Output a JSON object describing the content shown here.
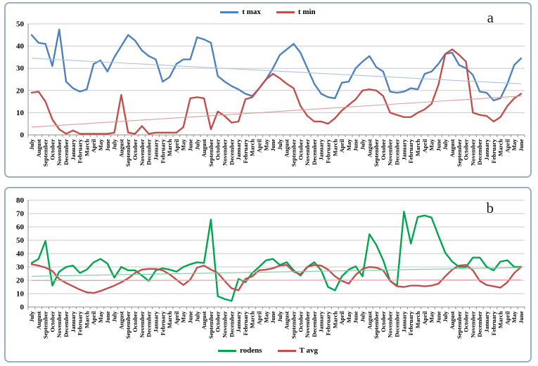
{
  "figure": {
    "panels": [
      {
        "letter": "a",
        "legend_position": "top"
      },
      {
        "letter": "b",
        "legend_position": "bottom"
      }
    ]
  },
  "chart_data": [
    {
      "type": "line",
      "panel": "a",
      "title": "",
      "xlabel": "",
      "ylabel": "",
      "ylim": [
        0,
        50
      ],
      "ytick_step": 10,
      "grid": true,
      "legend_position": "top",
      "categories": [
        "July",
        "August",
        "September",
        "October",
        "November",
        "December",
        "January",
        "February",
        "March",
        "April",
        "May",
        "June",
        "July",
        "August",
        "September",
        "October",
        "November",
        "December",
        "January",
        "February",
        "March",
        "April",
        "May",
        "June",
        "July",
        "August",
        "September",
        "October",
        "November",
        "December",
        "January",
        "February",
        "March",
        "April",
        "May",
        "June",
        "July",
        "August",
        "September",
        "October",
        "November",
        "December",
        "January",
        "February",
        "March",
        "April",
        "May",
        "June",
        "July",
        "August",
        "September",
        "October",
        "November",
        "December",
        "January",
        "February",
        "March",
        "April",
        "May",
        "June",
        "July",
        "August",
        "September",
        "October",
        "November",
        "December",
        "January",
        "February",
        "March",
        "April",
        "May",
        "June"
      ],
      "series": [
        {
          "name": "t max",
          "color": "#4F81BD",
          "values": [
            45,
            41.5,
            41,
            31,
            47.5,
            24,
            21,
            19.5,
            20.5,
            32,
            33.5,
            28.5,
            35,
            40,
            45,
            42.5,
            38,
            35.5,
            34,
            24,
            26,
            32,
            34,
            34,
            44,
            43,
            41.5,
            26.5,
            24,
            22,
            20.5,
            18.5,
            17.5,
            21,
            25,
            30,
            36,
            38.5,
            41,
            37,
            30,
            23,
            18.5,
            17,
            16.5,
            23.5,
            24,
            30,
            33,
            35.5,
            30.5,
            28.5,
            19.5,
            19,
            19.5,
            21,
            20.5,
            27.5,
            28.5,
            32,
            36.5,
            37,
            31.5,
            30,
            27,
            19.5,
            19,
            15.5,
            16.5,
            23,
            31.5,
            34.5
          ]
        },
        {
          "name": "t min",
          "color": "#C0504D",
          "values": [
            19,
            19.5,
            15,
            7,
            2.5,
            0.5,
            2,
            0.5,
            0.5,
            0.5,
            0.5,
            0.5,
            1,
            18,
            1,
            0.5,
            4,
            0.5,
            1,
            1,
            1,
            1,
            3.5,
            16.5,
            17,
            16.5,
            2.5,
            10.5,
            8.5,
            5.5,
            6,
            16,
            17,
            21,
            25,
            27.5,
            25.5,
            23,
            21,
            13,
            8.5,
            6,
            6,
            5,
            7.5,
            11,
            13.5,
            16,
            20,
            20.5,
            20,
            17.5,
            10,
            9,
            8,
            8,
            10,
            11.5,
            14,
            22.5,
            36.5,
            38.5,
            36,
            33,
            10,
            9,
            8.5,
            6,
            8,
            13,
            16.5,
            18.5
          ]
        },
        {
          "name": "t max trend",
          "trend": true,
          "color": "#A9C4E4",
          "start": 34.5,
          "end": 23
        },
        {
          "name": "t min trend",
          "trend": true,
          "color": "#DD9E9B",
          "start": 3.5,
          "end": 17.5
        }
      ]
    },
    {
      "type": "line",
      "panel": "b",
      "title": "",
      "xlabel": "",
      "ylabel": "",
      "ylim": [
        0,
        80
      ],
      "ytick_step": 10,
      "grid": true,
      "legend_position": "bottom",
      "categories": [
        "July",
        "August",
        "September",
        "October",
        "November",
        "December",
        "January",
        "February",
        "March",
        "April",
        "May",
        "June",
        "July",
        "August",
        "September",
        "October",
        "November",
        "December",
        "January",
        "February",
        "March",
        "April",
        "May",
        "June",
        "July",
        "August",
        "September",
        "October",
        "November",
        "December",
        "January",
        "February",
        "March",
        "April",
        "May",
        "June",
        "July",
        "August",
        "September",
        "October",
        "November",
        "December",
        "January",
        "February",
        "March",
        "April",
        "May",
        "June",
        "July",
        "August",
        "September",
        "October",
        "November",
        "December",
        "January",
        "February",
        "March",
        "April",
        "May",
        "June",
        "July",
        "August",
        "September",
        "October",
        "November",
        "December",
        "January",
        "February",
        "March",
        "April",
        "May",
        "June"
      ],
      "series": [
        {
          "name": "rodens",
          "color": "#00A550",
          "values": [
            33,
            36,
            49.5,
            16,
            26.5,
            30,
            31,
            25.5,
            28,
            33.5,
            36,
            32.5,
            22,
            30,
            27.5,
            27.5,
            23.5,
            19.5,
            27.5,
            29,
            28,
            26.5,
            30,
            32,
            33.5,
            33,
            65.5,
            8,
            6,
            4.5,
            21,
            18.5,
            25.5,
            30,
            35,
            36,
            31.5,
            33.5,
            27.5,
            23.5,
            30,
            33.5,
            27.5,
            15,
            12.5,
            23,
            28,
            30.5,
            23,
            54.5,
            46.5,
            35,
            19.5,
            16,
            71.5,
            47.5,
            67.5,
            68.5,
            67,
            53.5,
            40.5,
            34,
            30,
            30,
            37,
            37,
            30,
            27.5,
            34,
            35,
            30,
            30
          ]
        },
        {
          "name": "T avg",
          "color": "#C0504D",
          "values": [
            32,
            31,
            29.5,
            27,
            21,
            18,
            15.5,
            13,
            11,
            10.5,
            12,
            14,
            16,
            18.5,
            21.5,
            25.5,
            28,
            28.5,
            28.5,
            27.5,
            24.5,
            20.5,
            16.5,
            20.5,
            29.5,
            31,
            28,
            25.5,
            19.5,
            14,
            12.5,
            21,
            23,
            27.5,
            28,
            29,
            31,
            31.5,
            26.5,
            24.5,
            30,
            31.5,
            31,
            28,
            23,
            19.5,
            17.5,
            24,
            28.5,
            30,
            29.5,
            27.5,
            19.5,
            15.5,
            15,
            16,
            16,
            15.5,
            16,
            17.5,
            23,
            28,
            31,
            31.5,
            27.5,
            19.5,
            16.5,
            15.5,
            14.5,
            18.5,
            25.5,
            30
          ]
        },
        {
          "name": "rodens trend",
          "trend": true,
          "color": "#7CC99C",
          "start": 23,
          "end": 29.5
        },
        {
          "name": "T avg trend",
          "trend": true,
          "color": "#DD9E9B",
          "start": 19.8,
          "end": 20.3
        }
      ]
    }
  ]
}
